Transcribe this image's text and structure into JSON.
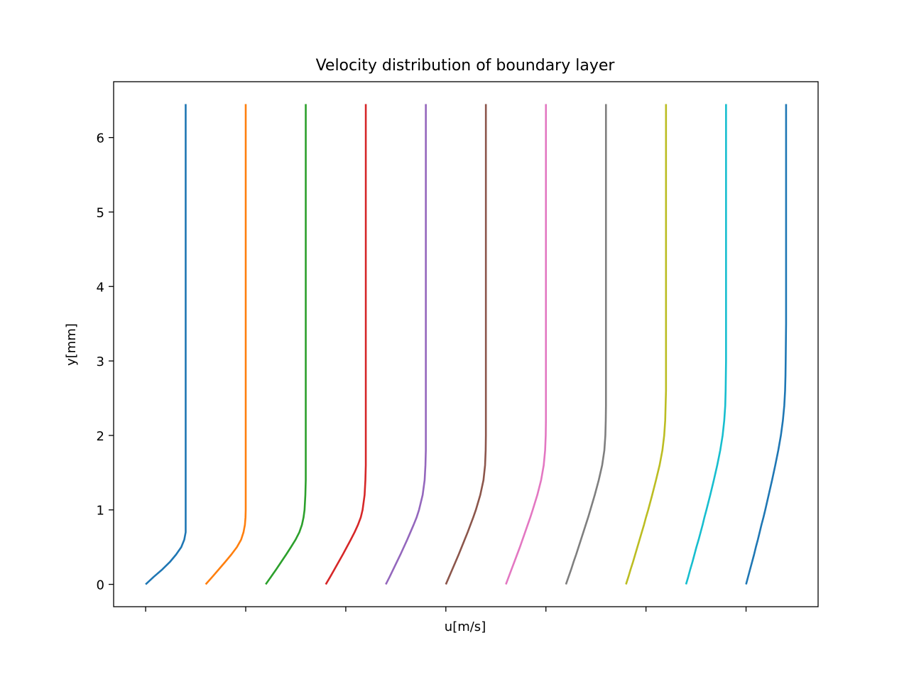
{
  "chart_data": {
    "type": "line",
    "title": "Velocity distribution of boundary layer",
    "xlabel": "u[m/s]",
    "ylabel": "y[mm]",
    "ylim": [
      -0.3,
      6.75
    ],
    "xlim": [
      -0.16,
      3.36
    ],
    "y_ticks": [
      "0",
      "1",
      "2",
      "3",
      "4",
      "5",
      "6"
    ],
    "y_tick_values": [
      0,
      1,
      2,
      3,
      4,
      5,
      6
    ],
    "x_tick_values": [
      0,
      0.5,
      1,
      1.5,
      2,
      2.5,
      3
    ],
    "x_tick_labels_visible": false,
    "grid": false,
    "legend": "none",
    "profile_y": [
      0,
      0.1,
      0.2,
      0.3,
      0.4,
      0.5,
      0.6,
      0.7,
      0.8,
      0.9,
      1.0,
      1.2,
      1.4,
      1.6,
      1.8,
      2.0,
      2.2,
      2.4,
      2.6,
      2.8,
      3.0,
      3.5,
      4.0,
      4.5,
      5.0,
      5.5,
      6.0,
      6.45
    ],
    "series": [
      {
        "color": "#1f77b4",
        "x": [
          0.0,
          0.04,
          0.083,
          0.121,
          0.152,
          0.178,
          0.193,
          0.2,
          0.2,
          0.2,
          0.2,
          0.2,
          0.2,
          0.2,
          0.2,
          0.2,
          0.2,
          0.2,
          0.2,
          0.2,
          0.2,
          0.2,
          0.2,
          0.2,
          0.2,
          0.2,
          0.2,
          0.2
        ]
      },
      {
        "color": "#ff7f0e",
        "x": [
          0.3,
          0.333,
          0.365,
          0.397,
          0.428,
          0.456,
          0.477,
          0.489,
          0.496,
          0.499,
          0.5,
          0.5,
          0.5,
          0.5,
          0.5,
          0.5,
          0.5,
          0.5,
          0.5,
          0.5,
          0.5,
          0.5,
          0.5,
          0.5,
          0.5,
          0.5,
          0.5,
          0.5
        ]
      },
      {
        "color": "#2ca02c",
        "x": [
          0.6,
          0.626,
          0.652,
          0.677,
          0.702,
          0.726,
          0.749,
          0.768,
          0.781,
          0.789,
          0.794,
          0.798,
          0.8,
          0.8,
          0.8,
          0.8,
          0.8,
          0.8,
          0.8,
          0.8,
          0.8,
          0.8,
          0.8,
          0.8,
          0.8,
          0.8,
          0.8,
          0.8
        ]
      },
      {
        "color": "#d62728",
        "x": [
          0.9,
          0.922,
          0.943,
          0.964,
          0.985,
          1.005,
          1.025,
          1.044,
          1.061,
          1.075,
          1.084,
          1.094,
          1.098,
          1.1,
          1.1,
          1.1,
          1.1,
          1.1,
          1.1,
          1.1,
          1.1,
          1.1,
          1.1,
          1.1,
          1.1,
          1.1,
          1.1,
          1.1
        ]
      },
      {
        "color": "#9467bd",
        "x": [
          1.2,
          1.219,
          1.237,
          1.255,
          1.273,
          1.29,
          1.307,
          1.323,
          1.339,
          1.354,
          1.366,
          1.384,
          1.394,
          1.398,
          1.4,
          1.4,
          1.4,
          1.4,
          1.4,
          1.4,
          1.4,
          1.4,
          1.4,
          1.4,
          1.4,
          1.4,
          1.4,
          1.4
        ]
      },
      {
        "color": "#8c564b",
        "x": [
          1.5,
          1.516,
          1.532,
          1.548,
          1.564,
          1.579,
          1.594,
          1.609,
          1.623,
          1.637,
          1.65,
          1.672,
          1.688,
          1.696,
          1.699,
          1.7,
          1.7,
          1.7,
          1.7,
          1.7,
          1.7,
          1.7,
          1.7,
          1.7,
          1.7,
          1.7,
          1.7,
          1.7
        ]
      },
      {
        "color": "#e377c2",
        "x": [
          1.8,
          1.814,
          1.828,
          1.842,
          1.856,
          1.87,
          1.883,
          1.896,
          1.909,
          1.922,
          1.934,
          1.957,
          1.976,
          1.989,
          1.996,
          1.999,
          2.0,
          2.0,
          2.0,
          2.0,
          2.0,
          2.0,
          2.0,
          2.0,
          2.0,
          2.0,
          2.0,
          2.0
        ]
      },
      {
        "color": "#7f7f7f",
        "x": [
          2.1,
          2.113,
          2.126,
          2.138,
          2.151,
          2.163,
          2.175,
          2.187,
          2.199,
          2.211,
          2.222,
          2.244,
          2.264,
          2.281,
          2.292,
          2.297,
          2.299,
          2.3,
          2.3,
          2.3,
          2.3,
          2.3,
          2.3,
          2.3,
          2.3,
          2.3,
          2.3,
          2.3
        ]
      },
      {
        "color": "#bcbd22",
        "x": [
          2.4,
          2.412,
          2.423,
          2.435,
          2.446,
          2.457,
          2.468,
          2.479,
          2.49,
          2.5,
          2.511,
          2.531,
          2.55,
          2.568,
          2.582,
          2.591,
          2.596,
          2.598,
          2.6,
          2.6,
          2.6,
          2.6,
          2.6,
          2.6,
          2.6,
          2.6,
          2.6,
          2.6
        ]
      },
      {
        "color": "#17becf",
        "x": [
          2.7,
          2.711,
          2.721,
          2.732,
          2.742,
          2.752,
          2.763,
          2.773,
          2.783,
          2.792,
          2.802,
          2.821,
          2.839,
          2.856,
          2.871,
          2.883,
          2.891,
          2.896,
          2.898,
          2.899,
          2.9,
          2.9,
          2.9,
          2.9,
          2.9,
          2.9,
          2.9,
          2.9
        ]
      },
      {
        "color": "#1f77b4",
        "x": [
          3.0,
          3.01,
          3.02,
          3.03,
          3.04,
          3.049,
          3.059,
          3.068,
          3.077,
          3.087,
          3.096,
          3.113,
          3.13,
          3.146,
          3.161,
          3.174,
          3.184,
          3.191,
          3.195,
          3.197,
          3.198,
          3.2,
          3.2,
          3.2,
          3.2,
          3.2,
          3.2,
          3.2
        ]
      }
    ]
  }
}
